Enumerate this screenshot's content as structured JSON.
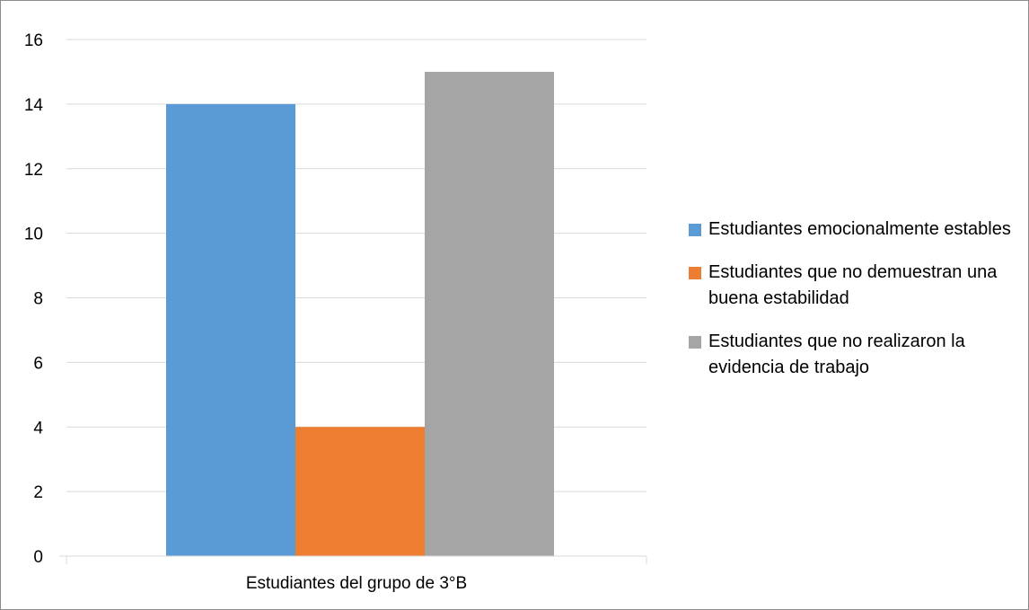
{
  "chart_data": {
    "type": "bar",
    "categories": [
      "Estudiantes del grupo de 3°B"
    ],
    "series": [
      {
        "name": "Estudiantes emocionalmente estables",
        "values": [
          14
        ],
        "color": "#5B9BD5"
      },
      {
        "name": "Estudiantes que no demuestran una buena estabilidad",
        "values": [
          4
        ],
        "color": "#ED7D31"
      },
      {
        "name": "Estudiantes que no realizaron la evidencia de trabajo",
        "values": [
          15
        ],
        "color": "#A5A5A5"
      }
    ],
    "ylim": [
      0,
      16
    ],
    "yticks": [
      "0",
      "2",
      "4",
      "6",
      "8",
      "10",
      "12",
      "14",
      "16"
    ],
    "grid": true,
    "legend_position": "right"
  }
}
